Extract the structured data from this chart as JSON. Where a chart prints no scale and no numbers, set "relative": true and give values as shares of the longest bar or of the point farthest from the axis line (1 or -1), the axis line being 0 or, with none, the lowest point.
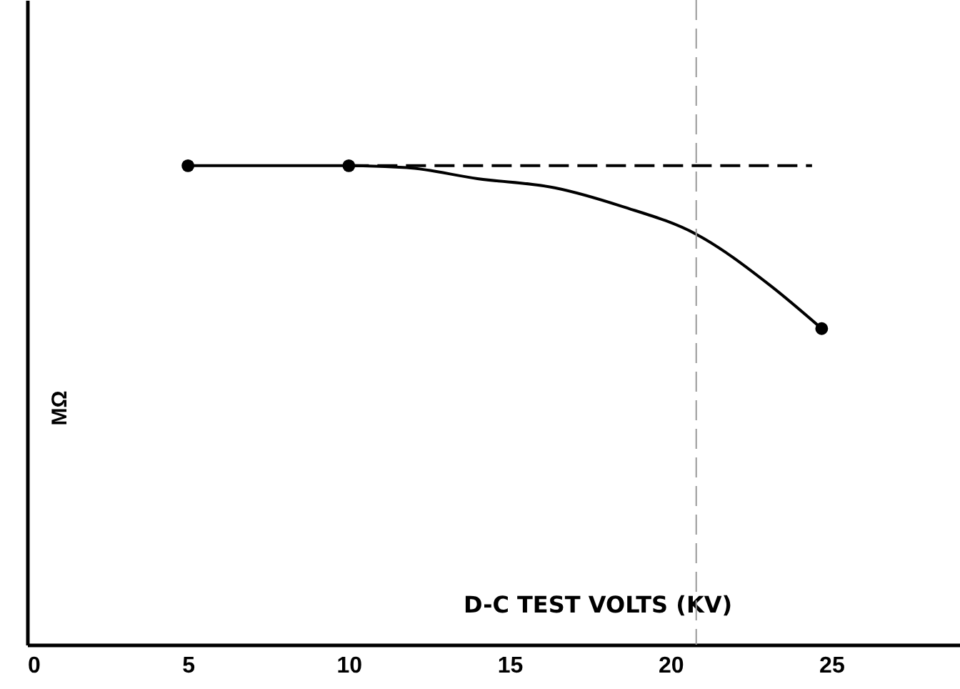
{
  "chart_data": {
    "type": "line",
    "xlabel": "D-C TEST VOLTS (KV)",
    "ylabel": "MΩ",
    "relative": true,
    "xlim": [
      0,
      29
    ],
    "xticks": [
      0,
      5,
      10,
      15,
      20,
      25
    ],
    "series": [
      {
        "color": "#000000",
        "marker": "none",
        "line_style": "solid",
        "x": [
          5,
          10,
          11.8,
          14,
          16.4,
          18.5,
          20.8,
          23.1,
          24.7
        ],
        "values": [
          1,
          1,
          0.996,
          0.973,
          0.954,
          0.915,
          0.857,
          0.75,
          0.66
        ]
      },
      {
        "type": "line",
        "color": "#000000",
        "marker": "none",
        "line_style": "dashed",
        "x": [
          10,
          24.4
        ],
        "values": [
          1,
          1
        ]
      },
      {
        "type": "scatter",
        "color": "#000000",
        "marker": "circle",
        "x": [
          5,
          10,
          24.7
        ],
        "values": [
          1,
          1,
          0.66
        ]
      }
    ],
    "ref_lines": [
      {
        "axis": "x",
        "value": 20.8,
        "color": "#999999",
        "line_style": "dashed"
      }
    ]
  }
}
